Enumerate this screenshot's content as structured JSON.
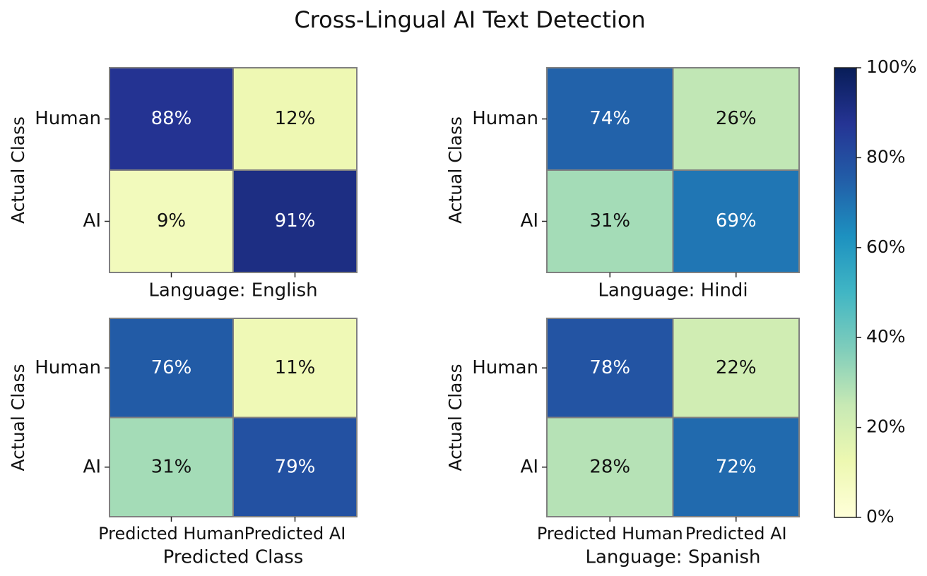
{
  "title": "Cross-Lingual AI Text Detection",
  "colorbar": {
    "colormap": "YlGnBu",
    "lim": [
      0,
      100
    ],
    "ticks": [
      {
        "value": 0,
        "label": "0%"
      },
      {
        "value": 20,
        "label": "20%"
      },
      {
        "value": 40,
        "label": "40%"
      },
      {
        "value": 60,
        "label": "60%"
      },
      {
        "value": 80,
        "label": "80%"
      },
      {
        "value": 100,
        "label": "100%"
      }
    ]
  },
  "chart_data": [
    {
      "type": "heatmap",
      "ylabel": "Actual Class",
      "xlabel": "Language: English",
      "y_categories": [
        "Human",
        "AI"
      ],
      "x_categories": [
        null,
        null
      ],
      "values": [
        [
          88,
          12
        ],
        [
          9,
          91
        ]
      ],
      "value_labels": [
        [
          "88%",
          "12%"
        ],
        [
          "9%",
          "91%"
        ]
      ]
    },
    {
      "type": "heatmap",
      "ylabel": "Actual Class",
      "xlabel": "Language: Hindi",
      "y_categories": [
        "Human",
        "AI"
      ],
      "x_categories": [
        null,
        null
      ],
      "values": [
        [
          74,
          26
        ],
        [
          31,
          69
        ]
      ],
      "value_labels": [
        [
          "74%",
          "26%"
        ],
        [
          "31%",
          "69%"
        ]
      ]
    },
    {
      "type": "heatmap",
      "ylabel": "Actual Class",
      "xlabel": "Predicted Class",
      "y_categories": [
        "Human",
        "AI"
      ],
      "x_categories": [
        "Predicted Human",
        "Predicted AI"
      ],
      "values": [
        [
          76,
          11
        ],
        [
          31,
          79
        ]
      ],
      "value_labels": [
        [
          "76%",
          "11%"
        ],
        [
          "31%",
          "79%"
        ]
      ]
    },
    {
      "type": "heatmap",
      "ylabel": "Actual Class",
      "xlabel": "Language: Spanish",
      "y_categories": [
        "Human",
        "AI"
      ],
      "x_categories": [
        "Predicted Human",
        "Predicted AI"
      ],
      "values": [
        [
          78,
          22
        ],
        [
          28,
          72
        ]
      ],
      "value_labels": [
        [
          "78%",
          "22%"
        ],
        [
          "28%",
          "72%"
        ]
      ]
    }
  ]
}
